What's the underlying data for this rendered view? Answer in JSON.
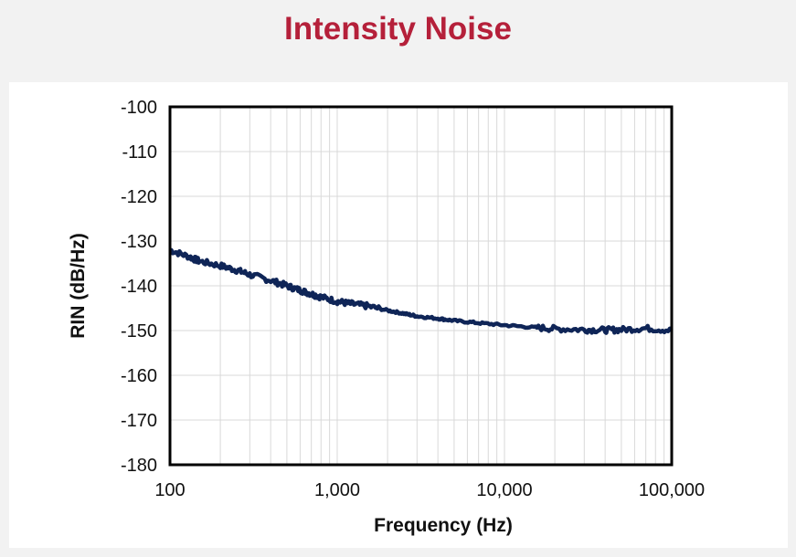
{
  "page": {
    "title": "Intensity Noise",
    "title_color": "#b5203a",
    "background": "#f2f2f2"
  },
  "chart_data": {
    "type": "line",
    "title": "",
    "xlabel": "Frequency (Hz)",
    "ylabel": "RIN (dB/Hz)",
    "xscale": "log",
    "xlim": [
      100,
      100000
    ],
    "ylim": [
      -180,
      -100
    ],
    "x_tick_values": [
      100,
      1000,
      10000,
      100000
    ],
    "x_tick_labels": [
      "100",
      "1,000",
      "10,000",
      "100,000"
    ],
    "y_tick_values": [
      -100,
      -110,
      -120,
      -130,
      -140,
      -150,
      -160,
      -170,
      -180
    ],
    "y_tick_labels": [
      "-100",
      "-110",
      "-120",
      "-130",
      "-140",
      "-150",
      "-160",
      "-170",
      "-180"
    ],
    "grid": true,
    "line_color": "#0f2557",
    "series": [
      {
        "x": [
          100,
          130,
          150,
          200,
          250,
          300,
          400,
          500,
          600,
          700,
          800,
          1000,
          1200,
          1500,
          2000,
          2500,
          3000,
          4000,
          5000,
          7000,
          10000,
          15000,
          20000,
          30000,
          40000,
          50000,
          70000,
          100000
        ],
        "y": [
          -132,
          -133.5,
          -134.5,
          -135.5,
          -136.5,
          -137.5,
          -138.8,
          -140,
          -141,
          -141.8,
          -142.5,
          -143.5,
          -144,
          -144.5,
          -145.5,
          -146.2,
          -146.8,
          -147.3,
          -147.8,
          -148.3,
          -148.8,
          -149.3,
          -149.6,
          -149.8,
          -149.9,
          -149.8,
          -149.5,
          -150
        ]
      }
    ]
  }
}
